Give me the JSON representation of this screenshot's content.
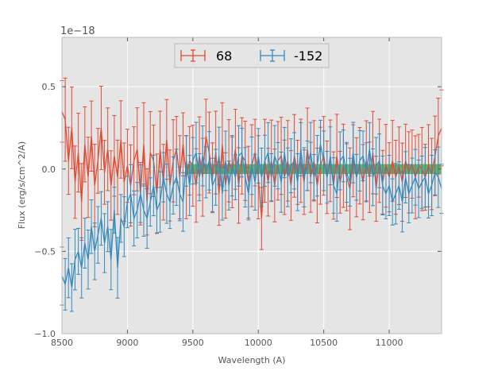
{
  "chart_data": {
    "type": "line",
    "xlabel": "Wavelength (A)",
    "ylabel": "Flux (erg/s/cm^2/A)",
    "offset_label": "1e−18",
    "xlim": [
      8500,
      11400
    ],
    "ylim": [
      -1.0,
      0.8
    ],
    "x_ticks": [
      8500,
      9000,
      9500,
      10000,
      10500,
      11000
    ],
    "x_tick_labels": [
      "8500",
      "9000",
      "9500",
      "10000",
      "10500",
      "11000"
    ],
    "y_ticks": [
      -1.0,
      -0.5,
      0.0,
      0.5
    ],
    "y_tick_labels": [
      "−1.0",
      "−0.5",
      "0.0",
      "0.5"
    ],
    "grid": true,
    "legend_position": "top-center",
    "band": {
      "x0": 9450,
      "x1": 11400,
      "y0": -0.03,
      "y1": 0.03,
      "color": "#2ca02c"
    },
    "series": [
      {
        "name": "68",
        "color": "#e24a33",
        "err": 0.22,
        "x": [
          8500,
          8525,
          8550,
          8575,
          8600,
          8625,
          8650,
          8675,
          8700,
          8725,
          8750,
          8775,
          8800,
          8825,
          8850,
          8875,
          8900,
          8925,
          8950,
          8975,
          9000,
          9025,
          9050,
          9075,
          9100,
          9125,
          9150,
          9175,
          9200,
          9225,
          9250,
          9275,
          9300,
          9325,
          9350,
          9375,
          9400,
          9425,
          9450,
          9475,
          9500,
          9525,
          9550,
          9575,
          9600,
          9625,
          9650,
          9675,
          9700,
          9725,
          9750,
          9775,
          9800,
          9825,
          9850,
          9875,
          9900,
          9925,
          9950,
          9975,
          10000,
          10025,
          10050,
          10075,
          10100,
          10125,
          10150,
          10175,
          10200,
          10225,
          10250,
          10275,
          10300,
          10325,
          10350,
          10375,
          10400,
          10425,
          10450,
          10475,
          10500,
          10525,
          10550,
          10575,
          10600,
          10625,
          10650,
          10675,
          10700,
          10725,
          10750,
          10775,
          10800,
          10825,
          10850,
          10875,
          10900,
          10925,
          10950,
          10975,
          11000,
          11025,
          11050,
          11075,
          11100,
          11125,
          11150,
          11175,
          11200,
          11225,
          11250,
          11275,
          11300,
          11325,
          11350,
          11375,
          11400
        ],
        "values": [
          0.35,
          0.3,
          0.05,
          0.25,
          -0.08,
          0.1,
          -0.2,
          0.15,
          -0.05,
          0.2,
          -0.1,
          0.05,
          0.25,
          -0.02,
          0.12,
          -0.1,
          0.08,
          -0.05,
          0.18,
          -0.08,
          0.02,
          -0.1,
          0.05,
          0.12,
          -0.15,
          0.15,
          -0.2,
          0.1,
          0.05,
          -0.15,
          0.12,
          -0.08,
          0.18,
          -0.1,
          0.05,
          0.12,
          -0.05,
          0.15,
          -0.05,
          0.05,
          0.02,
          -0.1,
          0.08,
          -0.05,
          0.2,
          0.1,
          -0.05,
          0.1,
          -0.15,
          0.15,
          -0.1,
          0.05,
          -0.02,
          0.12,
          -0.1,
          0.08,
          0.05,
          -0.08,
          0.02,
          0.1,
          -0.05,
          -0.3,
          0.05,
          -0.08,
          0.05,
          -0.1,
          0.05,
          0.08,
          -0.05,
          0.05,
          -0.1,
          0.08,
          -0.02,
          0.05,
          -0.08,
          0.12,
          -0.05,
          0.05,
          -0.1,
          0.02,
          0.08,
          -0.05,
          0.05,
          -0.1,
          0.08,
          -0.08,
          0.02,
          -0.05,
          -0.12,
          0.05,
          -0.05,
          0.02,
          -0.08,
          0.05,
          -0.05,
          0.1,
          -0.12,
          0.05,
          -0.08,
          0.02,
          -0.05,
          0.05,
          -0.05,
          0.02,
          -0.08,
          0.05,
          -0.02,
          0.03,
          -0.05,
          0.02,
          0.0,
          -0.05,
          0.02,
          -0.03,
          0.08,
          0.2,
          0.25
        ]
      },
      {
        "name": "-152",
        "color": "#348abd",
        "err": 0.16,
        "x": [
          8500,
          8525,
          8550,
          8575,
          8600,
          8625,
          8650,
          8675,
          8700,
          8725,
          8750,
          8775,
          8800,
          8825,
          8850,
          8875,
          8900,
          8925,
          8950,
          8975,
          9000,
          9025,
          9050,
          9075,
          9100,
          9125,
          9150,
          9175,
          9200,
          9225,
          9250,
          9275,
          9300,
          9325,
          9350,
          9375,
          9400,
          9425,
          9450,
          9475,
          9500,
          9525,
          9550,
          9575,
          9600,
          9625,
          9650,
          9675,
          9700,
          9725,
          9750,
          9775,
          9800,
          9825,
          9850,
          9875,
          9900,
          9925,
          9950,
          9975,
          10000,
          10025,
          10050,
          10075,
          10100,
          10125,
          10150,
          10175,
          10200,
          10225,
          10250,
          10275,
          10300,
          10325,
          10350,
          10375,
          10400,
          10425,
          10450,
          10475,
          10500,
          10525,
          10550,
          10575,
          10600,
          10625,
          10650,
          10675,
          10700,
          10725,
          10750,
          10775,
          10800,
          10825,
          10850,
          10875,
          10900,
          10925,
          10950,
          10975,
          11000,
          11025,
          11050,
          11075,
          11100,
          11125,
          11150,
          11175,
          11200,
          11225,
          11250,
          11275,
          11300,
          11325,
          11350,
          11375,
          11400
        ],
        "values": [
          -0.65,
          -0.7,
          -0.6,
          -0.72,
          -0.55,
          -0.5,
          -0.6,
          -0.45,
          -0.55,
          -0.35,
          -0.5,
          -0.4,
          -0.3,
          -0.45,
          -0.35,
          -0.55,
          -0.25,
          -0.6,
          -0.3,
          -0.35,
          -0.2,
          -0.15,
          -0.3,
          -0.25,
          -0.15,
          -0.25,
          -0.3,
          -0.2,
          -0.1,
          -0.25,
          -0.2,
          -0.05,
          -0.15,
          -0.2,
          -0.1,
          -0.05,
          -0.15,
          -0.2,
          0.05,
          -0.1,
          0.05,
          0.1,
          -0.05,
          0.08,
          -0.02,
          0.05,
          -0.1,
          -0.05,
          0.08,
          -0.15,
          0.05,
          -0.1,
          0.02,
          -0.05,
          0.08,
          0.1,
          -0.05,
          -0.15,
          0.02,
          -0.08,
          0.08,
          -0.05,
          0.05,
          0.1,
          -0.05,
          0.08,
          0.02,
          -0.08,
          0.1,
          -0.05,
          0.02,
          0.05,
          -0.08,
          0.12,
          -0.05,
          0.02,
          0.1,
          -0.05,
          0.02,
          0.15,
          0.05,
          -0.05,
          0.08,
          -0.1,
          -0.15,
          0.05,
          0.08,
          -0.02,
          -0.08,
          0.1,
          -0.05,
          0.05,
          0.08,
          -0.02,
          0.12,
          -0.05,
          0.02,
          0.05,
          -0.1,
          -0.15,
          -0.1,
          -0.2,
          -0.15,
          -0.1,
          -0.2,
          -0.05,
          -0.15,
          -0.1,
          -0.05,
          -0.12,
          -0.08,
          -0.05,
          -0.15,
          -0.1,
          -0.02,
          -0.05,
          -0.12
        ]
      }
    ]
  }
}
